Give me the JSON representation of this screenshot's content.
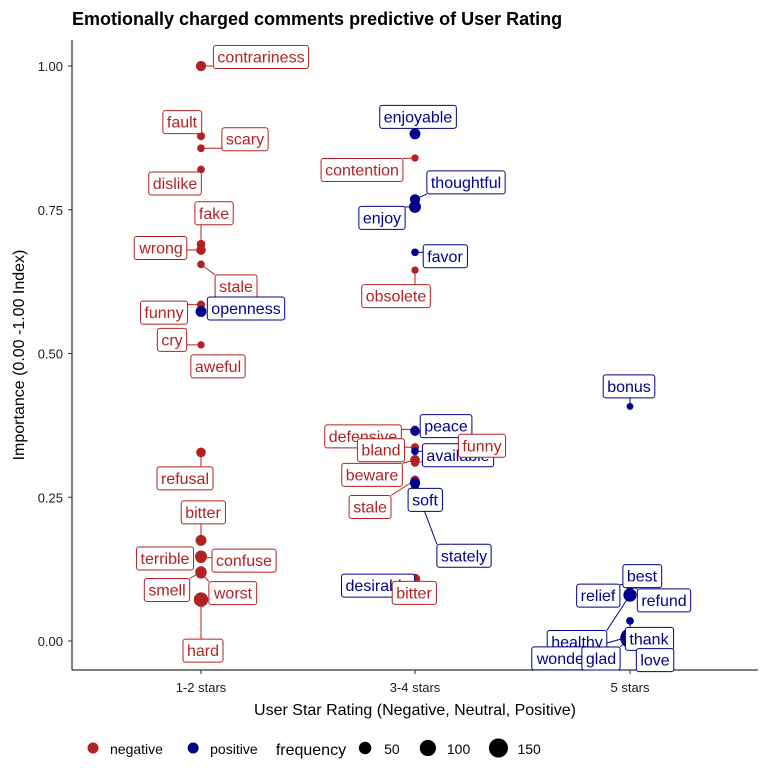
{
  "chart_data": {
    "type": "scatter",
    "title": "Emotionally charged comments predictive of User Rating",
    "xlabel": "User Star Rating (Negative, Neutral, Positive)",
    "ylabel": "Importance (0.00 -1.00 Index)",
    "categories": [
      "1-2 stars",
      "3-4 stars",
      "5 stars"
    ],
    "ylim": [
      -0.05,
      1.05
    ],
    "yticks": [
      "0.00",
      "0.25",
      "0.50",
      "0.75",
      "1.00"
    ],
    "grid": false,
    "colors": {
      "negative": "#b22222",
      "positive": "#00008b"
    },
    "legend": {
      "placement": "bottom",
      "sentiment": [
        "negative",
        "positive"
      ],
      "size_title": "frequency",
      "size_values": [
        50,
        100,
        150
      ]
    },
    "points": [
      {
        "word": "contrariness",
        "category": "1-2 stars",
        "importance": 1.0,
        "sentiment": "negative",
        "frequency": 30
      },
      {
        "word": "fault",
        "category": "1-2 stars",
        "importance": 0.878,
        "sentiment": "negative",
        "frequency": 15
      },
      {
        "word": "scary",
        "category": "1-2 stars",
        "importance": 0.857,
        "sentiment": "negative",
        "frequency": 12
      },
      {
        "word": "dislike",
        "category": "1-2 stars",
        "importance": 0.82,
        "sentiment": "negative",
        "frequency": 12
      },
      {
        "word": "fake",
        "category": "1-2 stars",
        "importance": 0.69,
        "sentiment": "negative",
        "frequency": 18
      },
      {
        "word": "wrong",
        "category": "1-2 stars",
        "importance": 0.68,
        "sentiment": "negative",
        "frequency": 25
      },
      {
        "word": "stale",
        "category": "1-2 stars",
        "importance": 0.655,
        "sentiment": "negative",
        "frequency": 12
      },
      {
        "word": "funny",
        "category": "1-2 stars",
        "importance": 0.585,
        "sentiment": "negative",
        "frequency": 15
      },
      {
        "word": "openness",
        "category": "1-2 stars",
        "importance": 0.573,
        "sentiment": "positive",
        "frequency": 35
      },
      {
        "word": "cry",
        "category": "1-2 stars",
        "importance": 0.515,
        "sentiment": "negative",
        "frequency": 10
      },
      {
        "word": "aweful",
        "category": "1-2 stars",
        "importance": 0.488,
        "sentiment": "negative",
        "frequency": 30
      },
      {
        "word": "refusal",
        "category": "1-2 stars",
        "importance": 0.328,
        "sentiment": "negative",
        "frequency": 25
      },
      {
        "word": "bitter",
        "category": "1-2 stars",
        "importance": 0.175,
        "sentiment": "negative",
        "frequency": 35
      },
      {
        "word": "terrible",
        "category": "1-2 stars",
        "importance": 0.147,
        "sentiment": "negative",
        "frequency": 45
      },
      {
        "word": "confuse",
        "category": "1-2 stars",
        "importance": 0.145,
        "sentiment": "negative",
        "frequency": 35
      },
      {
        "word": "smell",
        "category": "1-2 stars",
        "importance": 0.12,
        "sentiment": "negative",
        "frequency": 40
      },
      {
        "word": "worst",
        "category": "1-2 stars",
        "importance": 0.118,
        "sentiment": "negative",
        "frequency": 35
      },
      {
        "word": "hard",
        "category": "1-2 stars",
        "importance": 0.072,
        "sentiment": "negative",
        "frequency": 75
      },
      {
        "word": "enjoyable",
        "category": "3-4 stars",
        "importance": 0.882,
        "sentiment": "positive",
        "frequency": 35
      },
      {
        "word": "contention",
        "category": "3-4 stars",
        "importance": 0.84,
        "sentiment": "negative",
        "frequency": 10
      },
      {
        "word": "thoughtful",
        "category": "3-4 stars",
        "importance": 0.768,
        "sentiment": "positive",
        "frequency": 30
      },
      {
        "word": "enjoy",
        "category": "3-4 stars",
        "importance": 0.755,
        "sentiment": "positive",
        "frequency": 45
      },
      {
        "word": "favor",
        "category": "3-4 stars",
        "importance": 0.676,
        "sentiment": "positive",
        "frequency": 12
      },
      {
        "word": "obsolete",
        "category": "3-4 stars",
        "importance": 0.645,
        "sentiment": "negative",
        "frequency": 10
      },
      {
        "word": "defensive",
        "category": "3-4 stars",
        "importance": 0.368,
        "sentiment": "negative",
        "frequency": 12
      },
      {
        "word": "peace",
        "category": "3-4 stars",
        "importance": 0.365,
        "sentiment": "positive",
        "frequency": 25
      },
      {
        "word": "bland",
        "category": "3-4 stars",
        "importance": 0.337,
        "sentiment": "negative",
        "frequency": 15
      },
      {
        "word": "available",
        "category": "3-4 stars",
        "importance": 0.33,
        "sentiment": "positive",
        "frequency": 12
      },
      {
        "word": "beware",
        "category": "3-4 stars",
        "importance": 0.315,
        "sentiment": "negative",
        "frequency": 25
      },
      {
        "word": "funny",
        "category": "3-4 stars",
        "importance": 0.31,
        "sentiment": "negative",
        "frequency": 15
      },
      {
        "word": "stale",
        "category": "3-4 stars",
        "importance": 0.28,
        "sentiment": "negative",
        "frequency": 20
      },
      {
        "word": "soft",
        "category": "3-4 stars",
        "importance": 0.275,
        "sentiment": "positive",
        "frequency": 30
      },
      {
        "word": "stately",
        "category": "3-4 stars",
        "importance": 0.27,
        "sentiment": "positive",
        "frequency": 15
      },
      {
        "word": "desirable",
        "category": "3-4 stars",
        "importance": 0.105,
        "sentiment": "positive",
        "frequency": 12
      },
      {
        "word": "bitter",
        "category": "3-4 stars",
        "importance": 0.108,
        "sentiment": "negative",
        "frequency": 30
      },
      {
        "word": "bonus",
        "category": "5 stars",
        "importance": 0.408,
        "sentiment": "positive",
        "frequency": 8
      },
      {
        "word": "best",
        "category": "5 stars",
        "importance": 0.118,
        "sentiment": "positive",
        "frequency": 75
      },
      {
        "word": "relief",
        "category": "5 stars",
        "importance": 0.098,
        "sentiment": "positive",
        "frequency": 15
      },
      {
        "word": "refund",
        "category": "5 stars",
        "importance": 0.095,
        "sentiment": "positive",
        "frequency": 15
      },
      {
        "word": "healthy",
        "category": "5 stars",
        "importance": 0.08,
        "sentiment": "positive",
        "frequency": 60
      },
      {
        "word": "thank",
        "category": "5 stars",
        "importance": 0.035,
        "sentiment": "positive",
        "frequency": 12
      },
      {
        "word": "wonder",
        "category": "5 stars",
        "importance": 0.008,
        "sentiment": "positive",
        "frequency": 30
      },
      {
        "word": "glad",
        "category": "5 stars",
        "importance": 0.006,
        "sentiment": "positive",
        "frequency": 35
      },
      {
        "word": "love",
        "category": "5 stars",
        "importance": 0.005,
        "sentiment": "positive",
        "frequency": 160
      }
    ]
  }
}
